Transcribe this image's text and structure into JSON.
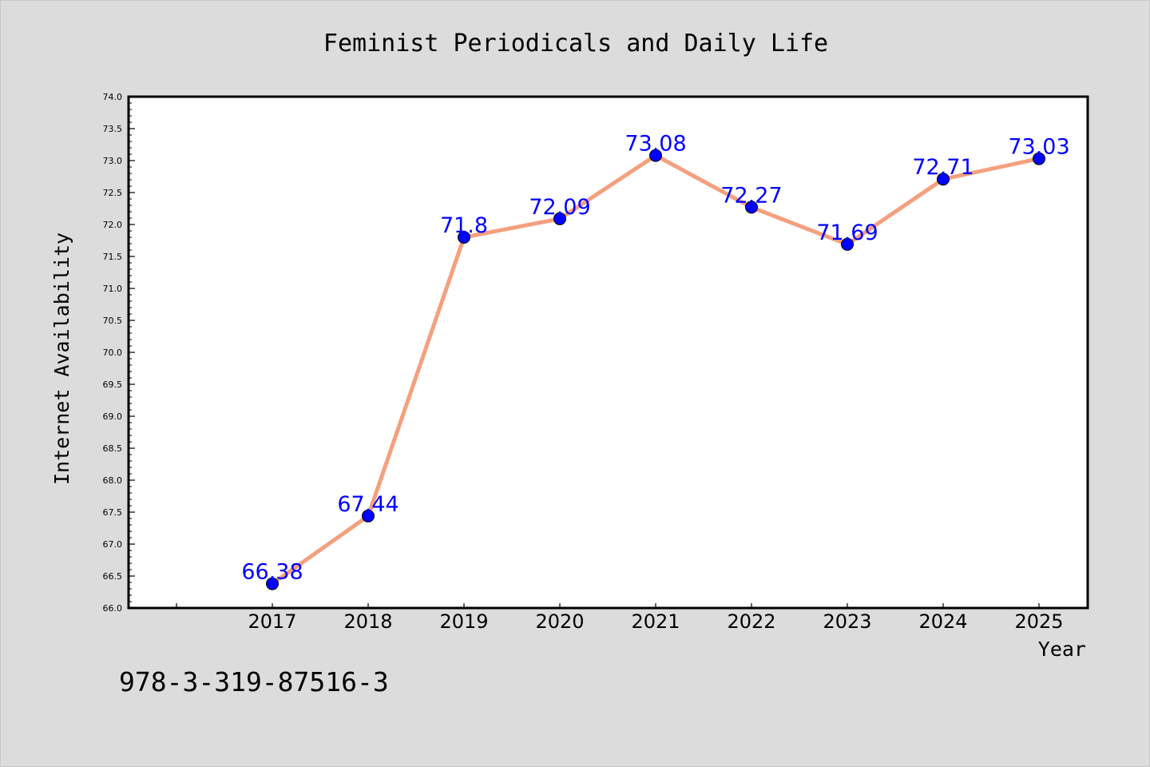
{
  "chart_data": {
    "type": "line",
    "title": "Feminist Periodicals and Daily Life",
    "xlabel": "Year",
    "ylabel": "Internet Availability",
    "x": [
      "2017",
      "2018",
      "2019",
      "2020",
      "2021",
      "2022",
      "2023",
      "2024",
      "2025"
    ],
    "series": [
      {
        "values": [
          66.38,
          67.44,
          71.8,
          72.09,
          73.08,
          72.27,
          71.69,
          72.71,
          73.03
        ],
        "labels": [
          "66.38",
          "67.44",
          "71.8",
          "72.09",
          "73.08",
          "72.27",
          "71.69",
          "72.71",
          "73.03"
        ],
        "line_color": "#f4a07e",
        "marker_color": "#0000ff"
      }
    ],
    "ylim": [
      66.0,
      74.0
    ],
    "yticks": [
      "66.0",
      "66.5",
      "67.0",
      "67.5",
      "68.0",
      "68.5",
      "69.0",
      "69.5",
      "70.0",
      "70.5",
      "71.0",
      "71.5",
      "72.0",
      "72.5",
      "73.0",
      "73.5",
      "74.0"
    ],
    "grid": false,
    "background": "#dcdcdc",
    "plot_background": "#ffffff"
  },
  "footer": {
    "isbn": "978-3-319-87516-3"
  }
}
